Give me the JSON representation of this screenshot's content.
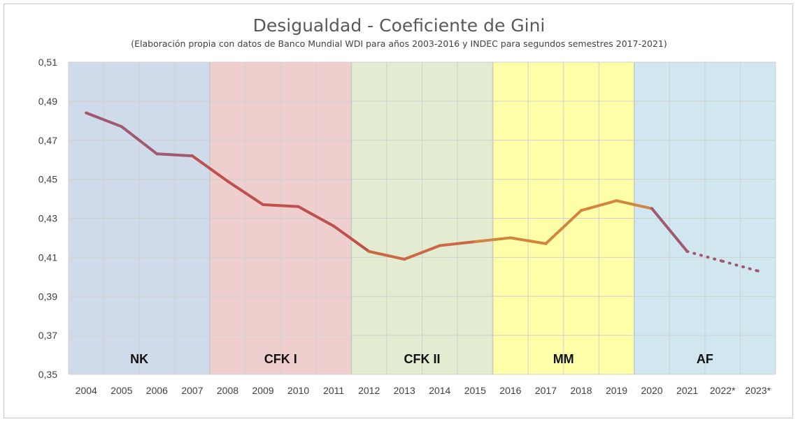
{
  "chart_data": {
    "type": "line",
    "title": "Desigualdad - Coeficiente de Gini",
    "subtitle": "(Elaboración propia con datos de Banco Mundial WDI para años 2003-2016 y INDEC para segundos semestres 2017-2021)",
    "categories": [
      "2004",
      "2005",
      "2006",
      "2007",
      "2008",
      "2009",
      "2010",
      "2011",
      "2012",
      "2013",
      "2014",
      "2015",
      "2016",
      "2017",
      "2018",
      "2019",
      "2020",
      "2021",
      "2022*",
      "2023*"
    ],
    "values": [
      0.484,
      0.477,
      0.463,
      0.462,
      0.449,
      0.437,
      0.436,
      0.426,
      0.413,
      0.409,
      0.416,
      0.418,
      0.42,
      0.417,
      0.434,
      0.439,
      0.435,
      0.413,
      0.408,
      0.403
    ],
    "dotted_from": "2021",
    "ylim": [
      0.35,
      0.51
    ],
    "yticks": [
      "0,51",
      "0,49",
      "0,47",
      "0,45",
      "0,43",
      "0,41",
      "0,39",
      "0,37",
      "0,35"
    ],
    "periods": [
      {
        "label": "NK",
        "start": "2004",
        "end": "2007",
        "color": "#cfdaeb"
      },
      {
        "label": "CFK I",
        "start": "2008",
        "end": "2011",
        "color": "#eecfce"
      },
      {
        "label": "CFK II",
        "start": "2012",
        "end": "2015",
        "color": "#e3ebd1"
      },
      {
        "label": "MM",
        "start": "2016",
        "end": "2019",
        "color": "#fefea9"
      },
      {
        "label": "AF",
        "start": "2020",
        "end": "2023*",
        "color": "#d1e7ef"
      }
    ],
    "line_colors": {
      "rose": "#a05a6e",
      "red": "#c0504d",
      "orange": "#d2853c"
    },
    "grid": true,
    "legend": "none"
  }
}
